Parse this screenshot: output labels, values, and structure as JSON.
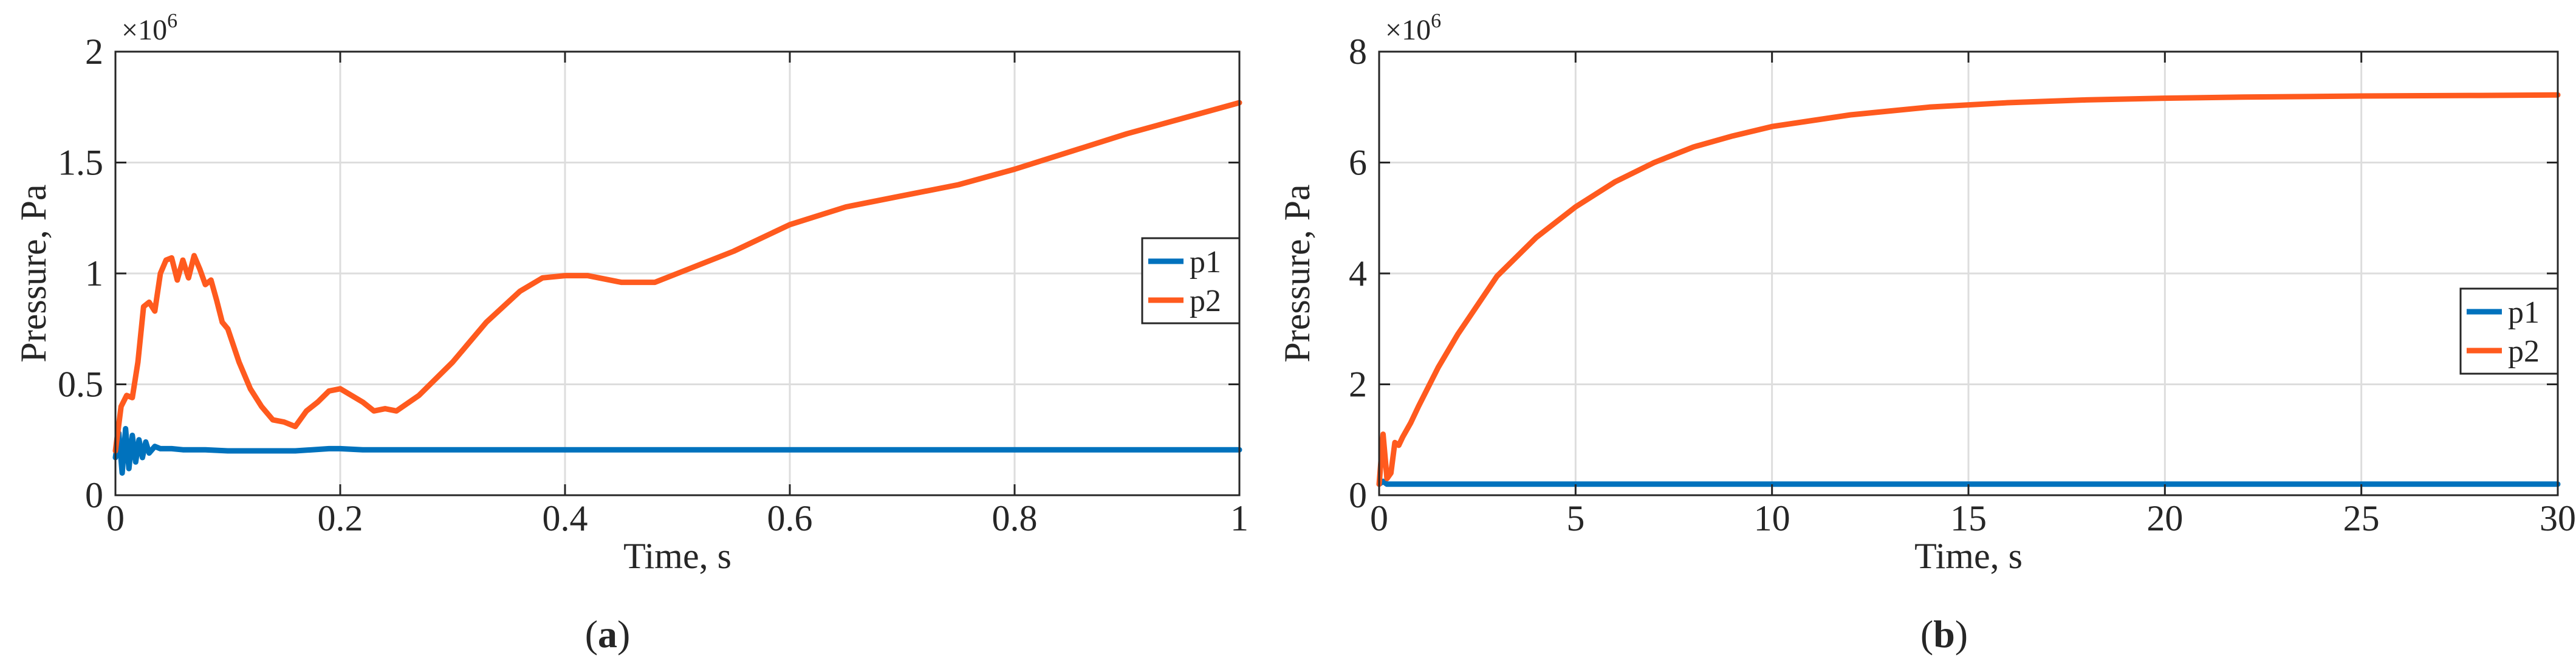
{
  "colors": {
    "p1": "#0072BD",
    "p2": "#FF5A1E",
    "grid": "#dddddd",
    "axis": "#262626"
  },
  "chart_data": [
    {
      "type": "line",
      "panel_label": "a",
      "xlabel": "Time, s",
      "ylabel": "Pressure, Pa",
      "y_exponent": "6",
      "xlim": [
        0,
        1
      ],
      "ylim": [
        0,
        2
      ],
      "xticks": [
        0,
        0.2,
        0.4,
        0.6,
        0.8,
        1
      ],
      "xtick_labels": [
        "0",
        "0.2",
        "0.4",
        "0.6",
        "0.8",
        "1"
      ],
      "yticks": [
        0,
        0.5,
        1,
        1.5,
        2
      ],
      "ytick_labels": [
        "0",
        "0.5",
        "1",
        "1.5",
        "2"
      ],
      "grid": true,
      "legend_position": "right",
      "series": [
        {
          "name": "p1",
          "x": [
            0,
            0.003,
            0.006,
            0.009,
            0.012,
            0.015,
            0.018,
            0.021,
            0.024,
            0.027,
            0.03,
            0.035,
            0.04,
            0.05,
            0.06,
            0.08,
            0.1,
            0.13,
            0.16,
            0.19,
            0.2,
            0.22,
            0.25,
            0.3,
            0.4,
            0.5,
            0.6,
            0.7,
            0.8,
            0.9,
            1.0
          ],
          "y": [
            0.17,
            0.28,
            0.1,
            0.3,
            0.12,
            0.27,
            0.15,
            0.25,
            0.17,
            0.24,
            0.19,
            0.22,
            0.21,
            0.21,
            0.205,
            0.205,
            0.2,
            0.2,
            0.2,
            0.21,
            0.21,
            0.205,
            0.205,
            0.205,
            0.205,
            0.205,
            0.205,
            0.205,
            0.205,
            0.205,
            0.205
          ]
        },
        {
          "name": "p2",
          "x": [
            0,
            0.005,
            0.01,
            0.015,
            0.02,
            0.025,
            0.03,
            0.035,
            0.04,
            0.045,
            0.05,
            0.055,
            0.06,
            0.065,
            0.07,
            0.075,
            0.08,
            0.085,
            0.09,
            0.095,
            0.1,
            0.11,
            0.12,
            0.13,
            0.14,
            0.15,
            0.16,
            0.17,
            0.18,
            0.19,
            0.2,
            0.21,
            0.22,
            0.23,
            0.24,
            0.25,
            0.27,
            0.3,
            0.33,
            0.36,
            0.38,
            0.4,
            0.42,
            0.45,
            0.48,
            0.5,
            0.55,
            0.6,
            0.65,
            0.7,
            0.75,
            0.8,
            0.85,
            0.9,
            0.95,
            1.0
          ],
          "y": [
            0.2,
            0.4,
            0.45,
            0.44,
            0.6,
            0.85,
            0.87,
            0.83,
            1.0,
            1.06,
            1.07,
            0.97,
            1.06,
            0.98,
            1.08,
            1.02,
            0.95,
            0.97,
            0.88,
            0.78,
            0.75,
            0.6,
            0.48,
            0.4,
            0.34,
            0.33,
            0.31,
            0.38,
            0.42,
            0.47,
            0.48,
            0.45,
            0.42,
            0.38,
            0.39,
            0.38,
            0.45,
            0.6,
            0.78,
            0.92,
            0.98,
            0.99,
            0.99,
            0.96,
            0.96,
            1.0,
            1.1,
            1.22,
            1.3,
            1.35,
            1.4,
            1.47,
            1.55,
            1.63,
            1.7,
            1.77
          ]
        }
      ]
    },
    {
      "type": "line",
      "panel_label": "b",
      "xlabel": "Time, s",
      "ylabel": "Pressure, Pa",
      "y_exponent": "6",
      "xlim": [
        0,
        30
      ],
      "ylim": [
        0,
        8
      ],
      "xticks": [
        0,
        5,
        10,
        15,
        20,
        25,
        30
      ],
      "xtick_labels": [
        "0",
        "5",
        "10",
        "15",
        "20",
        "25",
        "30"
      ],
      "yticks": [
        0,
        2,
        4,
        6,
        8
      ],
      "ytick_labels": [
        "0",
        "2",
        "4",
        "6",
        "8"
      ],
      "grid": true,
      "legend_position": "right",
      "series": [
        {
          "name": "p1",
          "x": [
            0,
            0.1,
            0.2,
            0.3,
            0.5,
            1,
            5,
            10,
            15,
            20,
            25,
            30
          ],
          "y": [
            0.2,
            0.25,
            0.2,
            0.2,
            0.2,
            0.2,
            0.2,
            0.2,
            0.2,
            0.2,
            0.2,
            0.2
          ]
        },
        {
          "name": "p2",
          "x": [
            0,
            0.1,
            0.2,
            0.3,
            0.4,
            0.5,
            0.6,
            0.8,
            1,
            1.5,
            2,
            3,
            4,
            5,
            6,
            7,
            8,
            9,
            10,
            12,
            14,
            16,
            18,
            20,
            22,
            25,
            28,
            30
          ],
          "y": [
            0.2,
            1.1,
            0.3,
            0.4,
            0.95,
            0.9,
            1.05,
            1.3,
            1.6,
            2.3,
            2.9,
            3.95,
            4.65,
            5.2,
            5.65,
            6.0,
            6.28,
            6.48,
            6.65,
            6.86,
            7.0,
            7.08,
            7.13,
            7.16,
            7.18,
            7.2,
            7.21,
            7.22
          ]
        }
      ]
    }
  ]
}
